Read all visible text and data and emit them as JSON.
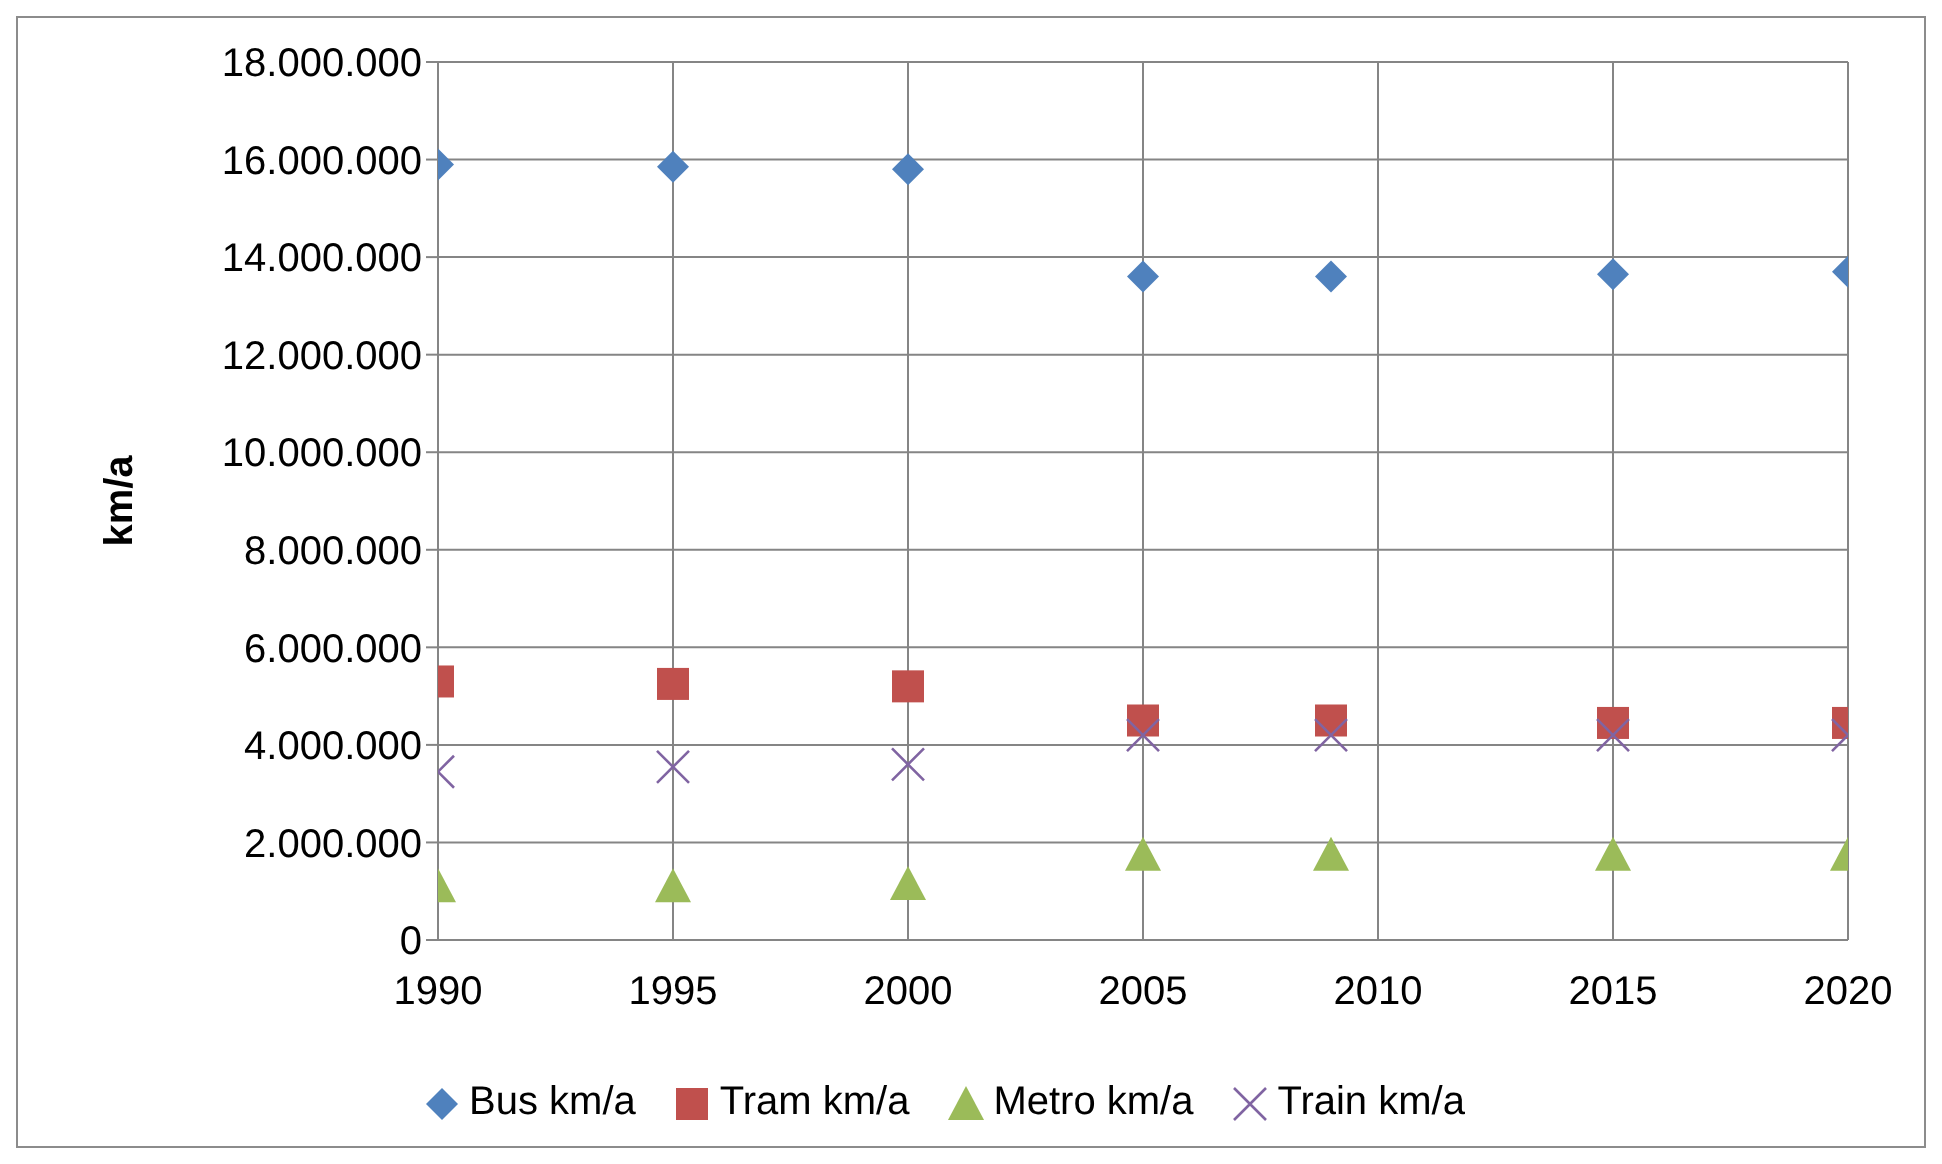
{
  "chart_data": {
    "type": "scatter",
    "ylabel": "km/a",
    "x": [
      1990,
      1995,
      2000,
      2005,
      2009,
      2015,
      2020
    ],
    "xlim": [
      1990,
      2020
    ],
    "xticks": [
      1990,
      1995,
      2000,
      2005,
      2010,
      2015,
      2020
    ],
    "ylim": [
      0,
      18000000
    ],
    "yticks": [
      {
        "value": 0,
        "label": "0"
      },
      {
        "value": 2000000,
        "label": "2.000.000"
      },
      {
        "value": 4000000,
        "label": "4.000.000"
      },
      {
        "value": 6000000,
        "label": "6.000.000"
      },
      {
        "value": 8000000,
        "label": "8.000.000"
      },
      {
        "value": 10000000,
        "label": "10.000.000"
      },
      {
        "value": 12000000,
        "label": "12.000.000"
      },
      {
        "value": 14000000,
        "label": "14.000.000"
      },
      {
        "value": 16000000,
        "label": "16.000.000"
      },
      {
        "value": 18000000,
        "label": "18.000.000"
      }
    ],
    "grid": true,
    "legend": "bottom",
    "series": [
      {
        "name": "Bus km/a",
        "color": "#4f81bd",
        "marker": "diamond",
        "values": [
          15900000,
          15850000,
          15800000,
          13600000,
          13600000,
          13650000,
          13700000
        ]
      },
      {
        "name": "Tram km/a",
        "color": "#c0504d",
        "marker": "square",
        "values": [
          5300000,
          5250000,
          5200000,
          4500000,
          4500000,
          4450000,
          4450000
        ]
      },
      {
        "name": "Metro km/a",
        "color": "#9bbb59",
        "marker": "triangle",
        "values": [
          1100000,
          1100000,
          1150000,
          1750000,
          1750000,
          1750000,
          1750000
        ]
      },
      {
        "name": "Train km/a",
        "color": "#8064a2",
        "marker": "cross",
        "values": [
          3450000,
          3550000,
          3600000,
          4200000,
          4200000,
          4200000,
          4200000
        ]
      }
    ]
  }
}
